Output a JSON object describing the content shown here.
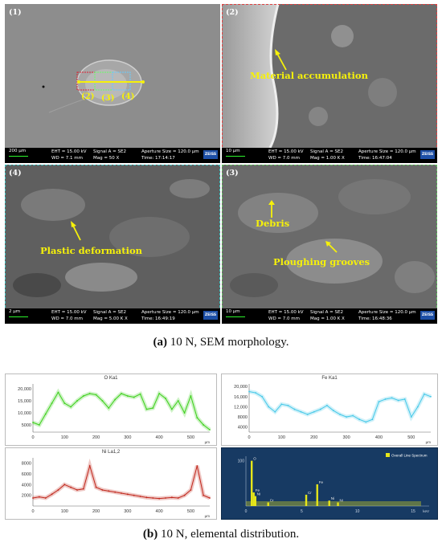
{
  "sem_panels": [
    {
      "num": "(1)",
      "scale": "200 μm",
      "eht": "EHT = 15.00 kV",
      "wd": "WD = 7.1 mm",
      "signal": "Signal A = SE2",
      "mag": "Mag = 50 X",
      "aperture": "Aperture Size = 120.0 μm",
      "time": "Time: 17:14:17",
      "logo": "ZEISS"
    },
    {
      "num": "(2)",
      "scale": "10 μm",
      "eht": "EHT = 15.00 kV",
      "wd": "WD = 7.0 mm",
      "signal": "Signal A = SE2",
      "mag": "Mag = 1.00 K X",
      "aperture": "Aperture Size = 120.0 μm",
      "time": "Time: 16:47:04",
      "logo": "ZEISS"
    },
    {
      "num": "(4)",
      "scale": "2 μm",
      "eht": "EHT = 15.00 kV",
      "wd": "WD = 7.0 mm",
      "signal": "Signal A = SE2",
      "mag": "Mag = 5.00 K X",
      "aperture": "Aperture Size = 120.0 μm",
      "time": "Time: 16:49:19",
      "logo": "ZEISS"
    },
    {
      "num": "(3)",
      "scale": "10 μm",
      "eht": "EHT = 15.00 kV",
      "wd": "WD = 7.0 mm",
      "signal": "Signal A = SE2",
      "mag": "Mag = 1.00 K X",
      "aperture": "Aperture Size = 120.0 μm",
      "time": "Time: 16:48:36",
      "logo": "ZEISS"
    }
  ],
  "annotations": {
    "p1_marks": [
      "(2)",
      "(3)",
      "(4)"
    ],
    "material_accumulation": "Material accumulation",
    "plastic_deformation": "Plastic deformation",
    "debris": "Debris",
    "ploughing_grooves": "Ploughing grooves"
  },
  "caption_a": {
    "label": "(a)",
    "text": " 10 N, SEM morphology."
  },
  "caption_b": {
    "label": "(b)",
    "text": " 10 N, elemental distribution."
  },
  "colors": {
    "o": "#3ccf1a",
    "fe": "#45c8e8",
    "ni": "#c0261b",
    "spectrum_bg": "#173a63",
    "annotation": "#f6f10a"
  },
  "chart_data": [
    {
      "type": "line",
      "title": "O Ka1",
      "x_ticks": [
        "0",
        "100",
        "200",
        "300",
        "400",
        "500"
      ],
      "y_ticks": [
        "5000",
        "10,000",
        "15,000",
        "20,000"
      ],
      "x_unit": "μm",
      "ylim": [
        2000,
        22000
      ],
      "xlim": [
        0,
        560
      ],
      "series": [
        {
          "x": [
            0,
            20,
            40,
            60,
            80,
            100,
            120,
            140,
            160,
            180,
            200,
            220,
            240,
            260,
            280,
            300,
            320,
            340,
            360,
            380,
            400,
            420,
            440,
            460,
            480,
            500,
            520,
            540,
            560
          ],
          "values": [
            6000,
            5000,
            9500,
            14000,
            18500,
            14000,
            12500,
            15000,
            17000,
            18000,
            17500,
            15000,
            12000,
            15500,
            18000,
            17000,
            16500,
            17800,
            11500,
            12000,
            18000,
            16000,
            11500,
            15000,
            10000,
            17000,
            8000,
            5000,
            3000
          ]
        }
      ]
    },
    {
      "type": "line",
      "title": "Fe Ka1",
      "x_ticks": [
        "0",
        "100",
        "200",
        "300",
        "400",
        "500"
      ],
      "y_ticks": [
        "4000",
        "8000",
        "12,000",
        "16,000",
        "20,000"
      ],
      "x_unit": "μm",
      "ylim": [
        2000,
        21000
      ],
      "xlim": [
        0,
        560
      ],
      "series": [
        {
          "x": [
            0,
            20,
            40,
            60,
            80,
            100,
            120,
            140,
            160,
            180,
            200,
            220,
            240,
            260,
            280,
            300,
            320,
            340,
            360,
            380,
            400,
            420,
            440,
            460,
            480,
            500,
            520,
            540,
            560
          ],
          "values": [
            18000,
            17500,
            16000,
            12000,
            10000,
            13000,
            12500,
            11000,
            10000,
            9000,
            10000,
            11000,
            12500,
            10500,
            9000,
            8000,
            8500,
            7000,
            6000,
            7000,
            14000,
            15000,
            15500,
            14500,
            15000,
            8000,
            12000,
            17000,
            16000
          ]
        }
      ]
    },
    {
      "type": "line",
      "title": "Ni La1,2",
      "x_ticks": [
        "0",
        "100",
        "200",
        "300",
        "400",
        "500"
      ],
      "y_ticks": [
        "2000",
        "4000",
        "6000",
        "8000"
      ],
      "x_unit": "μm",
      "ylim": [
        0,
        9000
      ],
      "xlim": [
        0,
        560
      ],
      "series": [
        {
          "x": [
            0,
            20,
            40,
            60,
            80,
            100,
            120,
            140,
            160,
            180,
            200,
            220,
            240,
            260,
            280,
            300,
            320,
            340,
            360,
            380,
            400,
            420,
            440,
            460,
            480,
            500,
            520,
            540,
            560
          ],
          "values": [
            1500,
            1700,
            1500,
            2200,
            3000,
            4000,
            3500,
            3000,
            3200,
            7500,
            3500,
            3000,
            2800,
            2600,
            2400,
            2200,
            2000,
            1800,
            1600,
            1500,
            1400,
            1500,
            1600,
            1500,
            2000,
            3000,
            7500,
            2000,
            1500
          ]
        }
      ]
    },
    {
      "type": "bar",
      "legend": "Overall Line Spectrum",
      "x_ticks": [
        "0",
        "5",
        "10",
        "15"
      ],
      "x_unit": "keV",
      "y_tick": "100",
      "peaks": [
        {
          "label": "O",
          "x": 0.52,
          "value": 100
        },
        {
          "label": "Fe",
          "x": 0.7,
          "value": 30
        },
        {
          "label": "Ni",
          "x": 0.85,
          "value": 22
        },
        {
          "label": "Cr",
          "x": 2.0,
          "value": 8
        },
        {
          "label": "Cr",
          "x": 5.41,
          "value": 25
        },
        {
          "label": "Fe",
          "x": 6.4,
          "value": 48
        },
        {
          "label": "Ni",
          "x": 7.48,
          "value": 12
        },
        {
          "label": "Ni",
          "x": 8.26,
          "value": 8
        }
      ]
    }
  ]
}
